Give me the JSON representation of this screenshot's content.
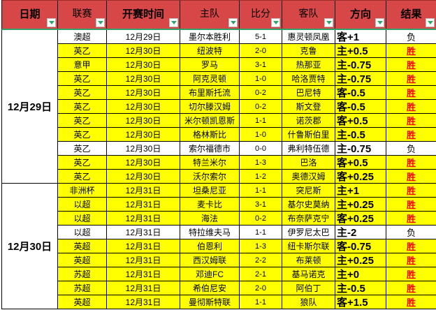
{
  "colors": {
    "header_bg": "#d84747",
    "row_win_bg": "#ffff00",
    "win_text": "#ff0000",
    "accent_green": "#2fa36b"
  },
  "table": {
    "win_value": "胜",
    "headers": [
      {
        "label": "日期"
      },
      {
        "label": "联赛"
      },
      {
        "label": "开赛时间"
      },
      {
        "label": "主队"
      },
      {
        "label": "比分"
      },
      {
        "label": "客队"
      },
      {
        "label": "方向"
      },
      {
        "label": "结果"
      }
    ],
    "groups": [
      {
        "date_label": "12月29日",
        "rows": [
          {
            "league": "澳超",
            "time": "12月29日",
            "home": "墨尔本胜利",
            "score": "5-1",
            "away": "惠灵顿凤凰",
            "direction": "客+1",
            "result": "负"
          },
          {
            "league": "英乙",
            "time": "12月30日",
            "home": "纽波特",
            "score": "2-0",
            "away": "克鲁",
            "direction": "主+0.5",
            "result": "胜"
          },
          {
            "league": "意甲",
            "time": "12月30日",
            "home": "罗马",
            "score": "3-1",
            "away": "热那亚",
            "direction": "主-0.75",
            "result": "胜"
          },
          {
            "league": "英乙",
            "time": "12月30日",
            "home": "阿克灵顿",
            "score": "1-0",
            "away": "哈洛贾特",
            "direction": "主-0.75",
            "result": "胜"
          },
          {
            "league": "英乙",
            "time": "12月30日",
            "home": "布里斯托流",
            "score": "0-2",
            "away": "巴尼特",
            "direction": "客-0.5",
            "result": "胜"
          },
          {
            "league": "英乙",
            "time": "12月30日",
            "home": "切尔滕汉姆",
            "score": "0-2",
            "away": "斯文登",
            "direction": "客-0.5",
            "result": "胜"
          },
          {
            "league": "英乙",
            "time": "12月30日",
            "home": "米尔顿凯恩斯",
            "score": "1-1",
            "away": "诺茨郡",
            "direction": "客+0.5",
            "result": "胜"
          },
          {
            "league": "英乙",
            "time": "12月30日",
            "home": "格林斯比",
            "score": "1-0",
            "away": "什鲁斯伯里",
            "direction": "主-0.5",
            "result": "胜"
          },
          {
            "league": "英乙",
            "time": "12月30日",
            "home": "索尔福德市",
            "score": "0-0",
            "away": "弗利特伍德",
            "direction": "主-0.75",
            "result": "负"
          },
          {
            "league": "英乙",
            "time": "12月30日",
            "home": "特兰米尔",
            "score": "1-3",
            "away": "巴洛",
            "direction": "客+0.5",
            "result": "胜"
          },
          {
            "league": "英乙",
            "time": "12月30日",
            "home": "沃尔索尔",
            "score": "1-2",
            "away": "奥德汉姆",
            "direction": "客+0.25",
            "result": "胜"
          }
        ]
      },
      {
        "date_label": "12月30日",
        "rows": [
          {
            "league": "非洲杯",
            "time": "12月31日",
            "home": "坦桑尼亚",
            "score": "1-1",
            "away": "突尼斯",
            "direction": "主+1",
            "result": "胜"
          },
          {
            "league": "以超",
            "time": "12月31日",
            "home": "麦卡比",
            "score": "3-1",
            "away": "基尔史莫纳",
            "direction": "主+0.25",
            "result": "胜"
          },
          {
            "league": "以超",
            "time": "12月31日",
            "home": "海法",
            "score": "0-2",
            "away": "布奈萨克宁",
            "direction": "客+0.25",
            "result": "胜"
          },
          {
            "league": "以超",
            "time": "12月31日",
            "home": "特拉维夫马",
            "score": "1-1",
            "away": "伊罗尼太巴",
            "direction": "主-2",
            "result": "负"
          },
          {
            "league": "英超",
            "time": "12月31日",
            "home": "伯恩利",
            "score": "1-3",
            "away": "纽卡斯尔联",
            "direction": "客-0.75",
            "result": "胜"
          },
          {
            "league": "英超",
            "time": "12月31日",
            "home": "西汉姆联",
            "score": "2-2",
            "away": "布莱顿",
            "direction": "主+0.25",
            "result": "胜"
          },
          {
            "league": "苏超",
            "time": "12月31日",
            "home": "邓迪FC",
            "score": "2-1",
            "away": "基马诺克",
            "direction": "主+0",
            "result": "胜"
          },
          {
            "league": "苏超",
            "time": "12月31日",
            "home": "希伯尼安",
            "score": "2-0",
            "away": "阿伯丁",
            "direction": "主-0.5",
            "result": "胜"
          },
          {
            "league": "英超",
            "time": "12月31日",
            "home": "曼彻斯特联",
            "score": "1-1",
            "away": "狼队",
            "direction": "客+1.5",
            "result": "胜"
          }
        ]
      }
    ]
  }
}
